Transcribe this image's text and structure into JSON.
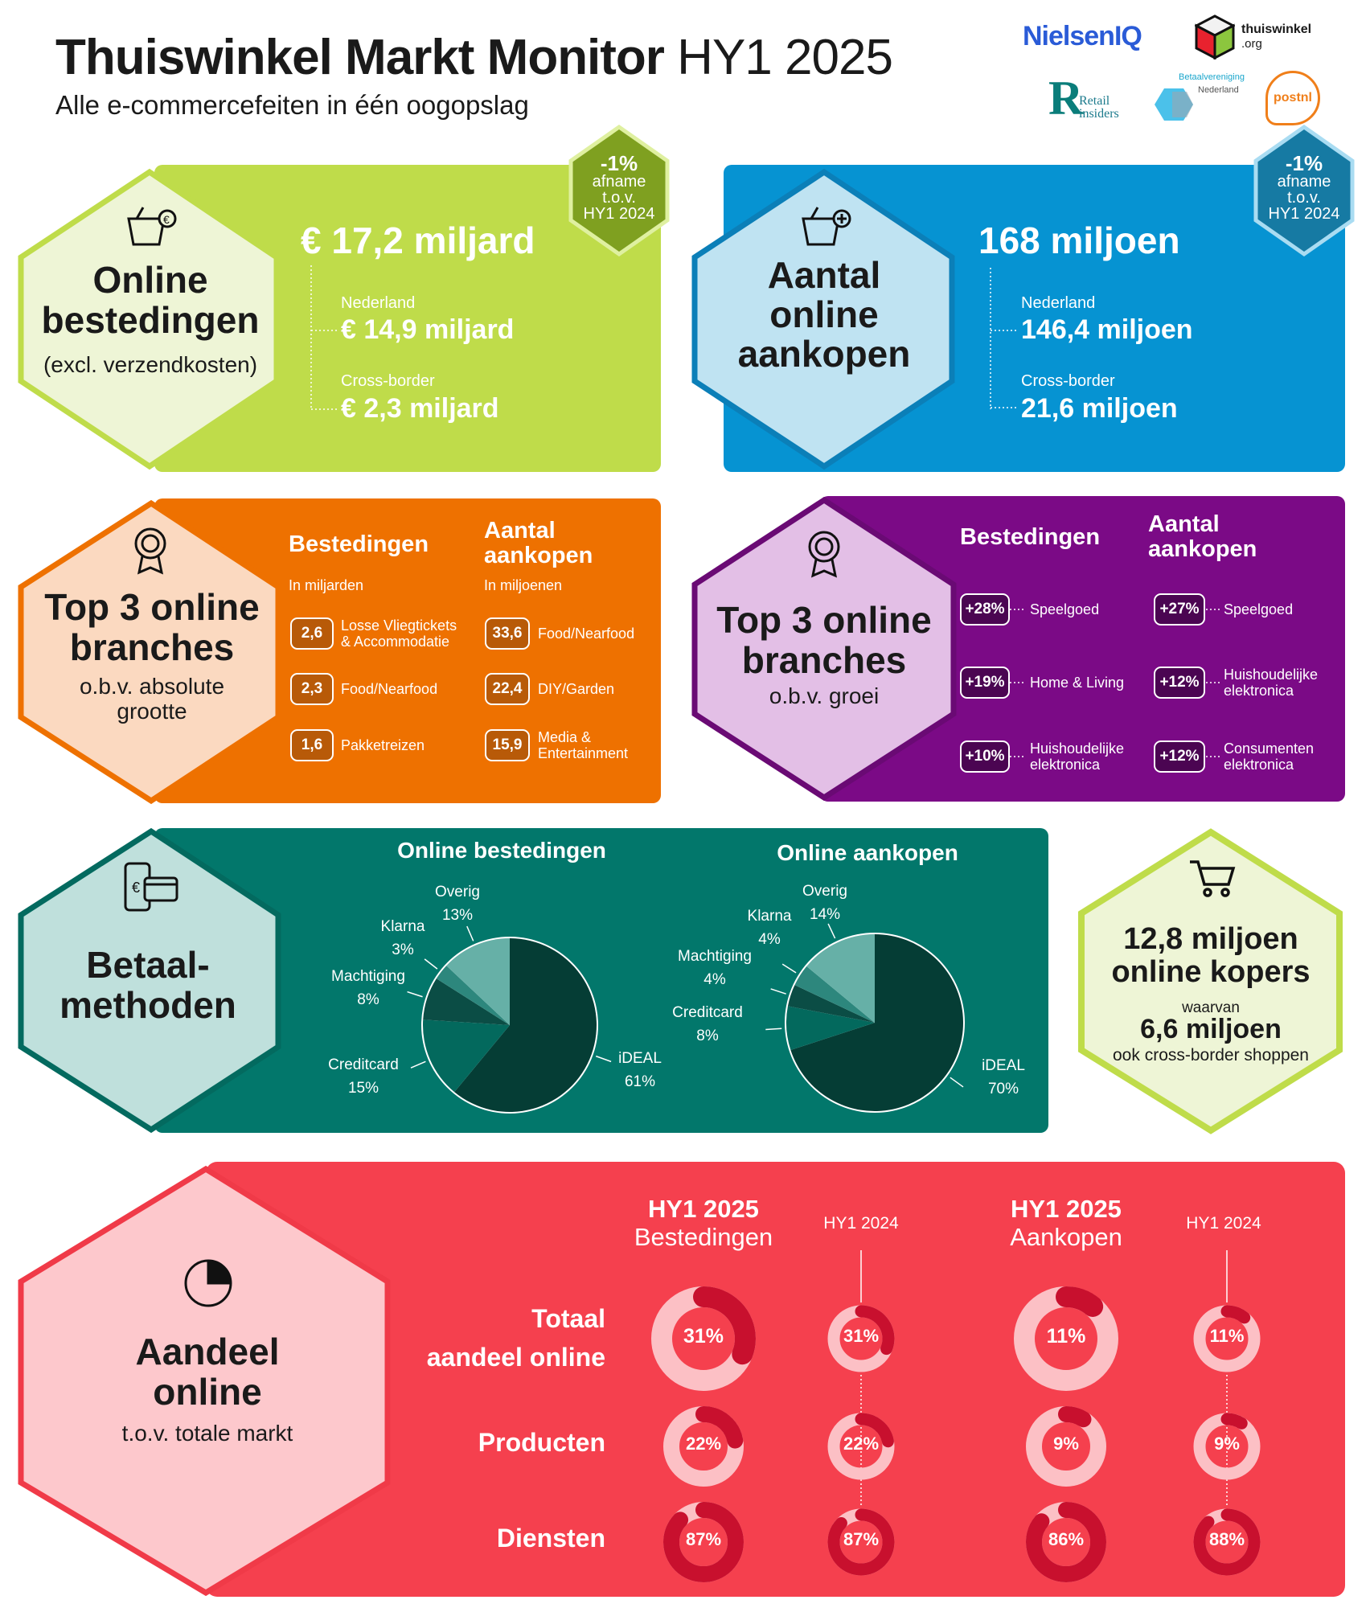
{
  "header": {
    "title": "Thuiswinkel Markt Monitor",
    "period": "HY1 2025",
    "subtitle": "Alle e-commercefeiten in één oogopslag"
  },
  "logos": {
    "nielseniq": "NielsenIQ",
    "thuiswinkel": "thuiswinkel",
    "thuiswinkel_sub": ".org",
    "retail_1": "Retail",
    "retail_2": "insiders",
    "betaal_1": "Betaalvereniging",
    "betaal_2": "Nederland",
    "postnl": "postnl"
  },
  "colors": {
    "green": "#bfdc4a",
    "blue": "#0693d2",
    "orange": "#ee7100",
    "purple": "#7b0a86",
    "teal": "#02776b",
    "red": "#f5404e"
  },
  "spend": {
    "title_1": "Online",
    "title_2": "bestedingen",
    "note": "(excl. verzendkosten)",
    "total": "€ 17,2 miljard",
    "nl_label": "Nederland",
    "nl_value": "€ 14,9 miljard",
    "cb_label": "Cross-border",
    "cb_value": "€ 2,3 miljard",
    "badge": {
      "pct": "-1%",
      "l1": "afname",
      "l2": "t.o.v.",
      "l3": "HY1 2024"
    },
    "icon": "basket-euro-icon"
  },
  "purchases": {
    "title_1": "Aantal",
    "title_2": "online",
    "title_3": "aankopen",
    "total": "168 miljoen",
    "nl_label": "Nederland",
    "nl_value": "146,4 miljoen",
    "cb_label": "Cross-border",
    "cb_value": "21,6 miljoen",
    "badge": {
      "pct": "-1%",
      "l1": "afname",
      "l2": "t.o.v.",
      "l3": "HY1 2024"
    },
    "icon": "basket-plus-icon"
  },
  "top_abs": {
    "title_1": "Top 3 online",
    "title_2": "branches",
    "sub_1": "o.b.v. absolute",
    "sub_2": "grootte",
    "col1": {
      "h": "Bestedingen",
      "unit": "In miljarden",
      "rows": [
        {
          "v": "2,6",
          "l1": "Losse Vliegtickets",
          "l2": "& Accommodatie"
        },
        {
          "v": "2,3",
          "l1": "Food/Nearfood",
          "l2": ""
        },
        {
          "v": "1,6",
          "l1": "Pakketreizen",
          "l2": ""
        }
      ]
    },
    "col2": {
      "h1": "Aantal",
      "h2": "aankopen",
      "unit": "In miljoenen",
      "rows": [
        {
          "v": "33,6",
          "l1": "Food/Nearfood",
          "l2": ""
        },
        {
          "v": "22,4",
          "l1": "DIY/Garden",
          "l2": ""
        },
        {
          "v": "15,9",
          "l1": "Media &",
          "l2": "Entertainment"
        }
      ]
    }
  },
  "top_growth": {
    "title_1": "Top 3 online",
    "title_2": "branches",
    "sub": "o.b.v. groei",
    "col1": {
      "h": "Bestedingen",
      "rows": [
        {
          "v": "+28%",
          "l1": "Speelgoed",
          "l2": ""
        },
        {
          "v": "+19%",
          "l1": "Home & Living",
          "l2": ""
        },
        {
          "v": "+10%",
          "l1": "Huishoudelijke",
          "l2": "elektronica"
        }
      ]
    },
    "col2": {
      "h1": "Aantal",
      "h2": "aankopen",
      "rows": [
        {
          "v": "+27%",
          "l1": "Speelgoed",
          "l2": ""
        },
        {
          "v": "+12%",
          "l1": "Huishoudelijke",
          "l2": "elektronica"
        },
        {
          "v": "+12%",
          "l1": "Consumenten",
          "l2": "elektronica"
        }
      ]
    }
  },
  "payment": {
    "title_1": "Betaal-",
    "title_2": "methoden",
    "icon": "phone-card-icon"
  },
  "chart_data": [
    {
      "type": "pie",
      "title": "Online bestedingen",
      "categories": [
        "iDEAL",
        "Creditcard",
        "Machtiging",
        "Klarna",
        "Overig"
      ],
      "values": [
        61,
        15,
        8,
        3,
        13
      ],
      "labels": [
        "61%",
        "15%",
        "8%",
        "3%",
        "13%"
      ],
      "colors": [
        "#053d35",
        "#03695d",
        "#0b4d45",
        "#2d877d",
        "#66b0a7"
      ]
    },
    {
      "type": "pie",
      "title": "Online aankopen",
      "categories": [
        "iDEAL",
        "Creditcard",
        "Machtiging",
        "Klarna",
        "Overig"
      ],
      "values": [
        70,
        8,
        4,
        4,
        14
      ],
      "labels": [
        "70%",
        "8%",
        "4%",
        "4%",
        "14%"
      ],
      "colors": [
        "#053d35",
        "#03695d",
        "#0b4d45",
        "#2d877d",
        "#66b0a7"
      ]
    },
    {
      "type": "donut",
      "title": "Aandeel online",
      "columns": [
        "HY1 2025 Bestedingen",
        "HY1 2024",
        "HY1 2025 Aankopen",
        "HY1 2024"
      ],
      "rows": [
        "Totaal aandeel online",
        "Producten",
        "Diensten"
      ],
      "values": [
        [
          31,
          31,
          11,
          11
        ],
        [
          22,
          22,
          9,
          9
        ],
        [
          87,
          87,
          86,
          88
        ]
      ]
    }
  ],
  "buyers": {
    "l1": "12,8 miljoen",
    "l2": "online kopers",
    "l3": "waarvan",
    "l4": "6,6 miljoen",
    "l5": "ook cross-border shoppen",
    "icon": "cart-icon"
  },
  "share": {
    "title_1": "Aandeel",
    "title_2": "online",
    "sub": "t.o.v. totale markt",
    "h1a": "HY1 2025",
    "h1b": "Bestedingen",
    "h2": "HY1 2024",
    "h3a": "HY1 2025",
    "h3b": "Aankopen",
    "h4": "HY1 2024",
    "r1a": "Totaal",
    "r1b": "aandeel online",
    "r2": "Producten",
    "r3": "Diensten",
    "icon": "pie-chart-icon"
  }
}
